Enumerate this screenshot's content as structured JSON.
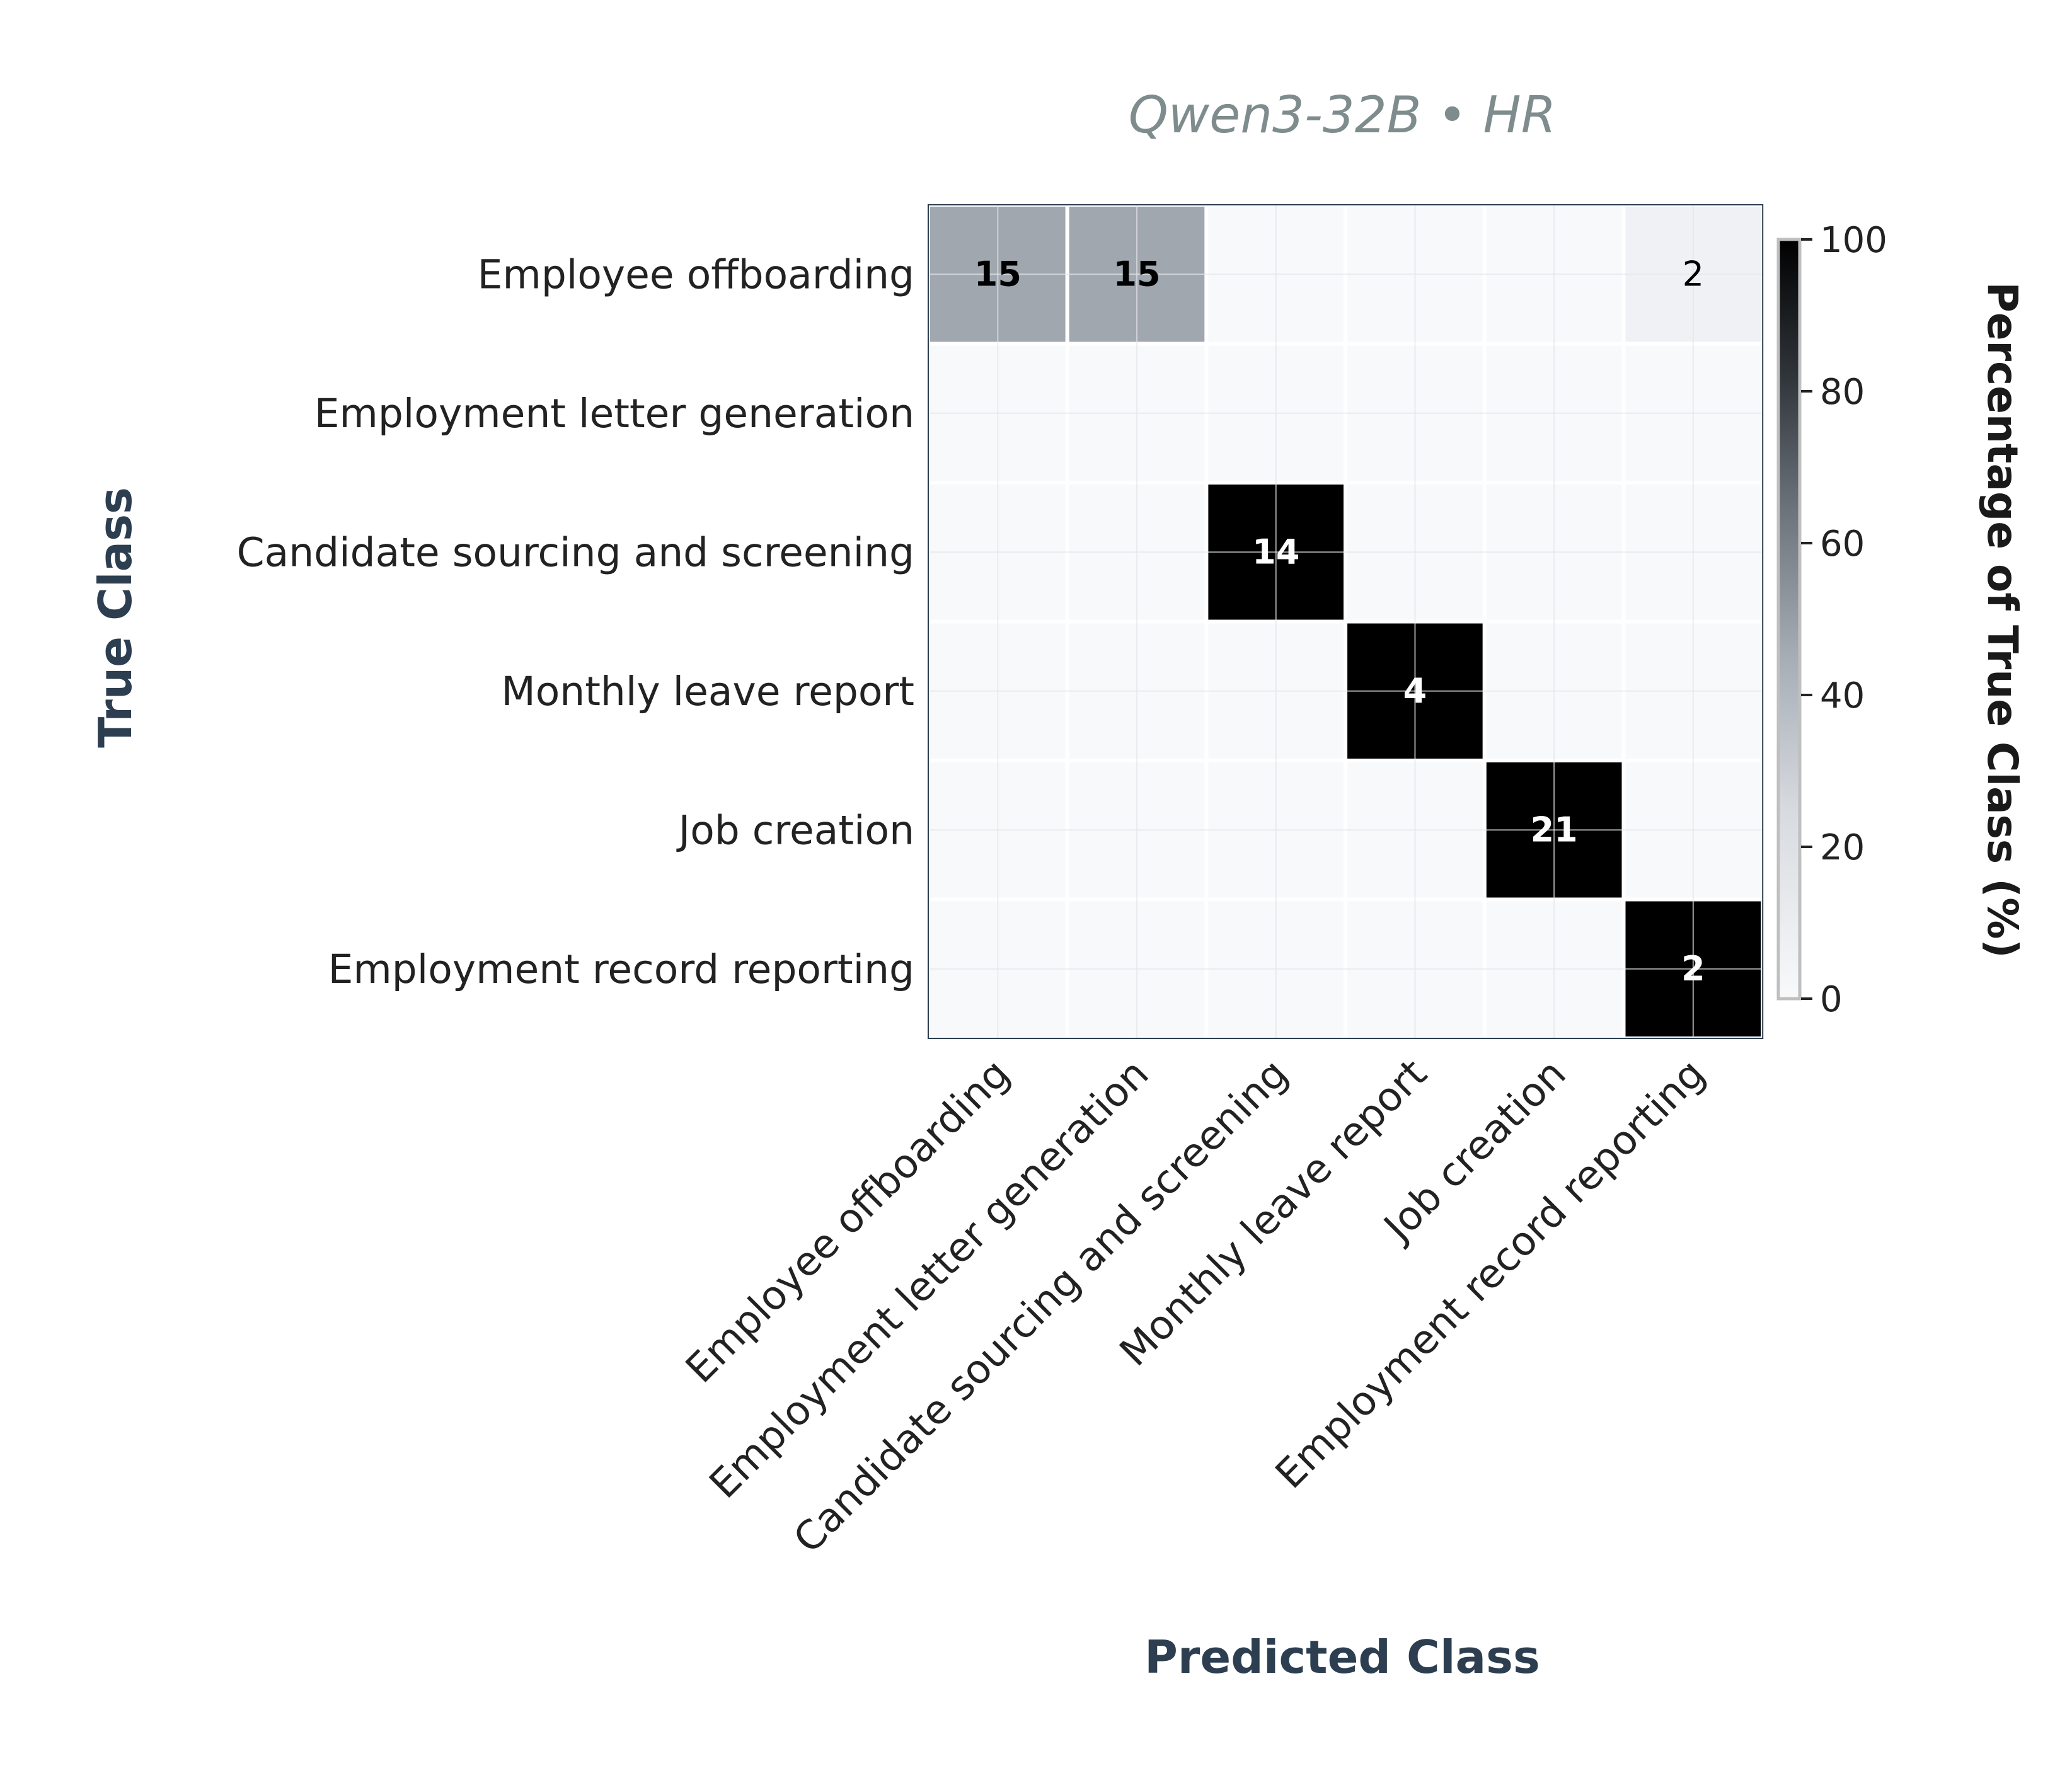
{
  "chart_data": {
    "type": "heatmap",
    "title": "Qwen3-32B • HR",
    "xlabel": "Predicted Class",
    "ylabel": "True Class",
    "x_categories": [
      "Employee offboarding",
      "Employment letter generation",
      "Candidate sourcing and screening",
      "Monthly leave report",
      "Job creation",
      "Employment record reporting"
    ],
    "y_categories": [
      "Employee offboarding",
      "Employment letter generation",
      "Candidate sourcing and screening",
      "Monthly leave report",
      "Job creation",
      "Employment record reporting"
    ],
    "counts": [
      [
        15,
        15,
        0,
        0,
        0,
        2
      ],
      [
        0,
        0,
        0,
        0,
        0,
        0
      ],
      [
        0,
        0,
        14,
        0,
        0,
        0
      ],
      [
        0,
        0,
        0,
        4,
        0,
        0
      ],
      [
        0,
        0,
        0,
        0,
        21,
        0
      ],
      [
        0,
        0,
        0,
        0,
        0,
        2
      ]
    ],
    "percentages": [
      [
        46.9,
        46.9,
        0,
        0,
        0,
        6.2
      ],
      [
        0,
        0,
        0,
        0,
        0,
        0
      ],
      [
        0,
        0,
        100,
        0,
        0,
        0
      ],
      [
        0,
        0,
        0,
        100,
        0,
        0
      ],
      [
        0,
        0,
        0,
        0,
        100,
        0
      ],
      [
        0,
        0,
        0,
        0,
        0,
        100
      ]
    ],
    "colorbar": {
      "label": "Percentage of True Class (%)",
      "range": [
        0,
        100
      ],
      "ticks": [
        0,
        20,
        40,
        60,
        80,
        100
      ]
    },
    "colors": {
      "title": "#7f8c8d",
      "axis_label": "#2c3e50",
      "tick_text": "#222222",
      "zero_cell": "#f8f9fb",
      "grid_line": "#e4e6ea"
    },
    "grid": true
  }
}
